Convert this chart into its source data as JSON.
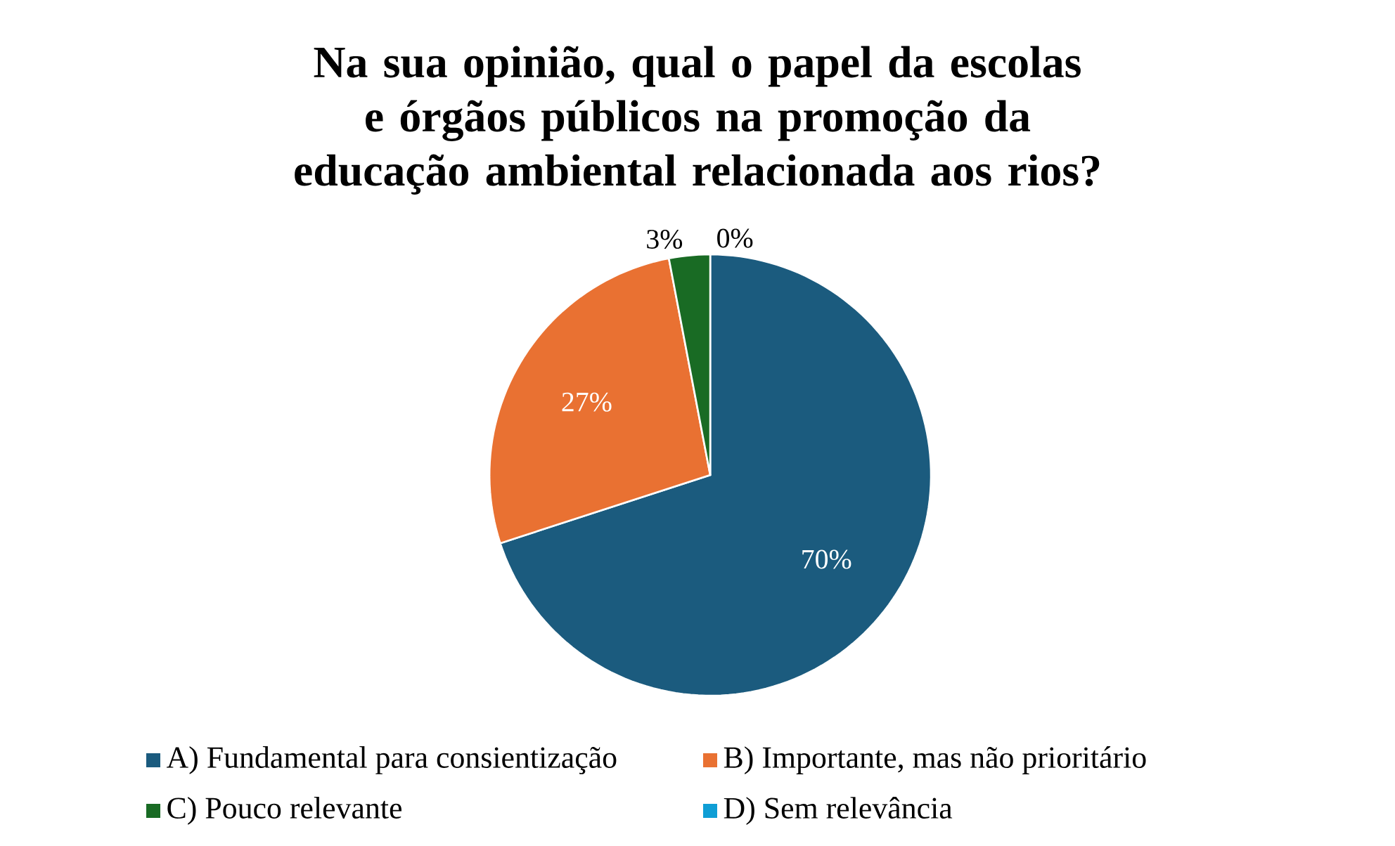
{
  "chart_data": {
    "type": "pie",
    "title": "Na sua opinião, qual o papel da escolas e órgãos públicos na promoção da educação ambiental relacionada aos rios?",
    "categories": [
      "A) Fundamental para consientização",
      "B) Importante, mas não prioritário",
      "C) Pouco relevante",
      "D) Sem relevância"
    ],
    "values": [
      70,
      27,
      3,
      0
    ],
    "value_labels": [
      "70%",
      "27%",
      "3%",
      "0%"
    ],
    "colors": [
      "#1b5b7e",
      "#e97132",
      "#196b24",
      "#0f9ed5"
    ],
    "legend": "bottom"
  }
}
